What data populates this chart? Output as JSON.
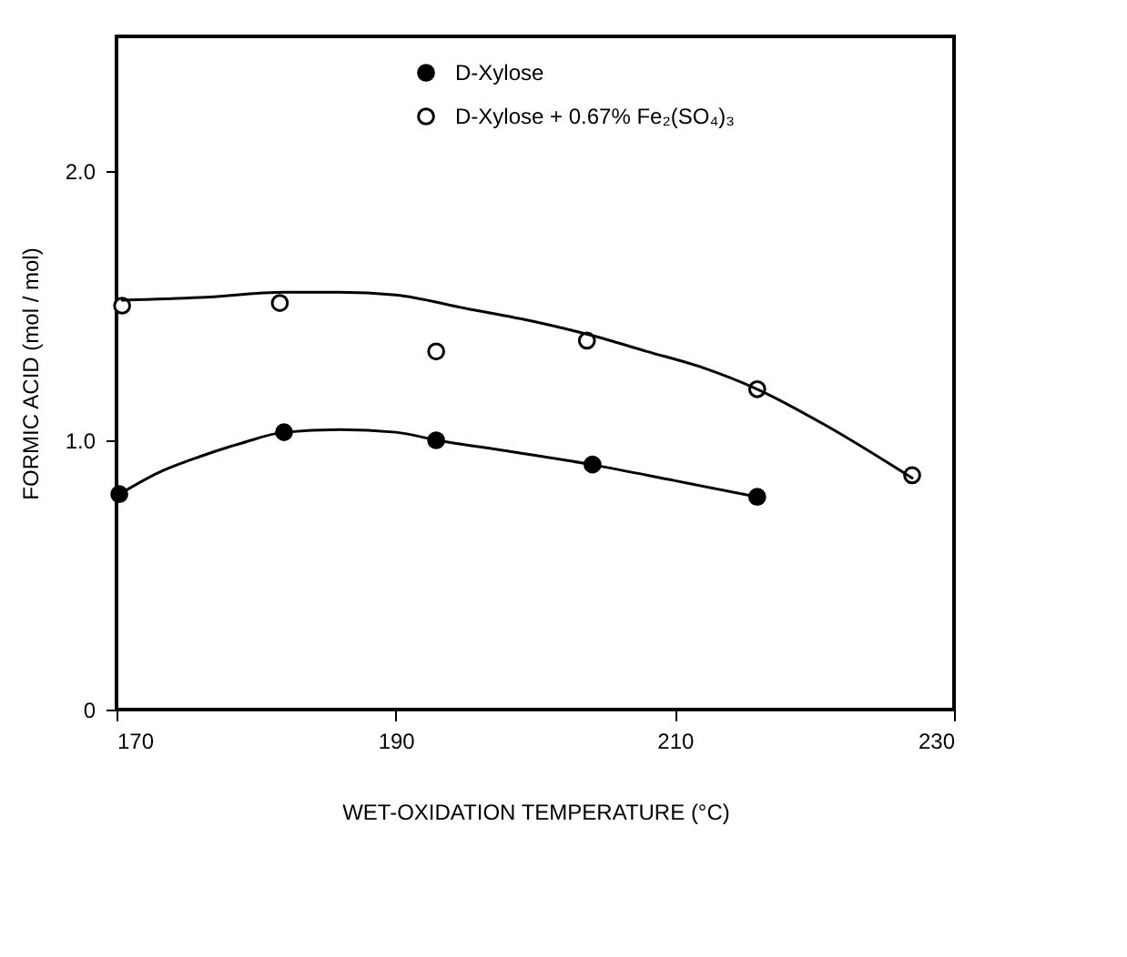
{
  "chart_data": {
    "type": "scatter",
    "xlabel": "WET-OXIDATION TEMPERATURE (°C)",
    "ylabel": "FORMIC ACID (mol / mol)",
    "xlim": [
      170,
      230
    ],
    "xticks": [
      170,
      190,
      210,
      230
    ],
    "ylim": [
      0,
      2.5
    ],
    "yticks": [
      {
        "value": 0,
        "label": "0"
      },
      {
        "value": 1,
        "label": "1.0"
      },
      {
        "value": 2,
        "label": "2.0"
      }
    ],
    "grid": false,
    "legend": "top",
    "marker": "circle",
    "series": [
      {
        "name": "D-Xylose",
        "color": "#000000",
        "x": [
          170.2,
          182,
          192.9,
          204.1,
          215.9
        ],
        "values": [
          0.8,
          1.03,
          1.0,
          0.91,
          0.79
        ]
      },
      {
        "name": "D-Xylose + 0.67% Fe₂(SO₄)₃",
        "color": "#000000",
        "x": [
          170.4,
          181.7,
          192.9,
          203.7,
          215.9,
          227
        ],
        "values": [
          1.5,
          1.51,
          1.33,
          1.37,
          1.19,
          0.87
        ]
      },
      {
        "type": "line",
        "marker": "none",
        "line_style": "solid",
        "color": "#000000",
        "x": [
          170.2,
          173,
          176,
          179,
          182,
          186,
          190,
          193,
          198,
          204,
          210,
          215.9
        ],
        "values": [
          0.8,
          0.88,
          0.94,
          0.99,
          1.03,
          1.04,
          1.03,
          1.0,
          0.96,
          0.91,
          0.85,
          0.79
        ]
      },
      {
        "type": "line",
        "marker": "none",
        "line_style": "solid",
        "color": "#000000",
        "x": [
          170.4,
          176,
          182,
          186,
          190,
          195,
          200,
          204,
          208,
          212,
          215.9,
          221,
          227
        ],
        "values": [
          1.52,
          1.53,
          1.55,
          1.55,
          1.54,
          1.49,
          1.44,
          1.39,
          1.33,
          1.27,
          1.19,
          1.05,
          0.86
        ]
      }
    ]
  }
}
